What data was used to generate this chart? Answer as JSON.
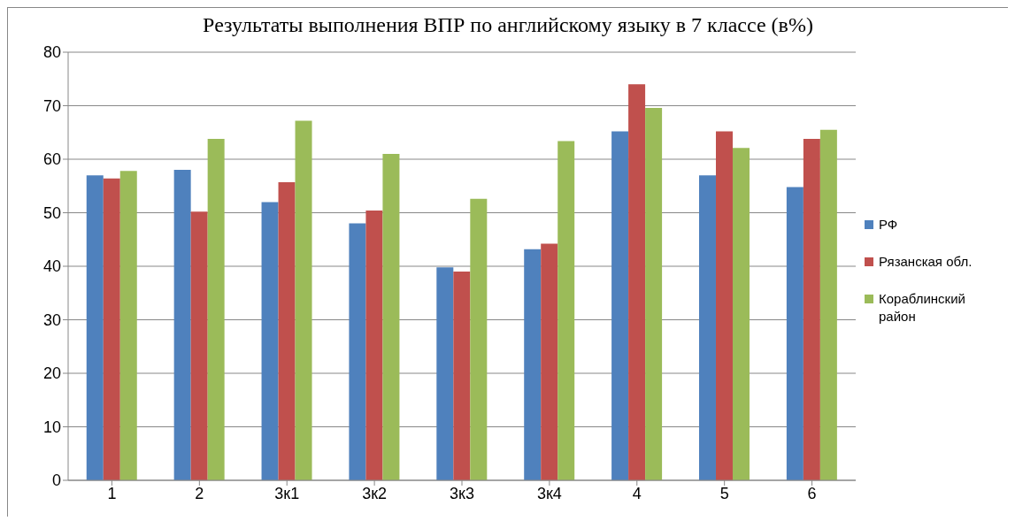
{
  "chart_data": {
    "type": "bar",
    "title": "Результаты выполнения ВПР по английскому языку в 7 классе (в%)",
    "categories": [
      "1",
      "2",
      "3к1",
      "3к2",
      "3к3",
      "3к4",
      "4",
      "5",
      "6"
    ],
    "series": [
      {
        "name": "РФ",
        "color": "#4f81bd",
        "values": [
          57,
          58,
          52,
          48,
          39.8,
          43.2,
          65.2,
          57,
          54.8
        ]
      },
      {
        "name": "Рязанская обл.",
        "color": "#c0504d",
        "values": [
          56.4,
          50.2,
          55.7,
          50.4,
          39,
          44.2,
          74,
          65.2,
          63.8
        ]
      },
      {
        "name": "Кораблинский район",
        "color": "#9bbb59",
        "values": [
          57.8,
          63.8,
          67.2,
          61,
          52.6,
          63.4,
          69.6,
          62.1,
          65.5
        ]
      }
    ],
    "ylim": [
      0,
      80
    ],
    "yticks": [
      0,
      10,
      20,
      30,
      40,
      50,
      60,
      70,
      80
    ],
    "grid": "y",
    "legend": "right"
  }
}
